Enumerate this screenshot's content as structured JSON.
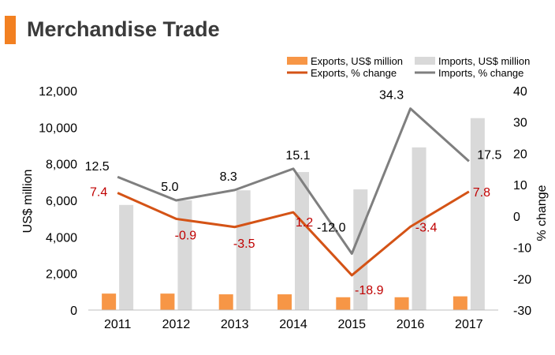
{
  "title": "Merchandise Trade",
  "colors": {
    "accent": "#f28021",
    "exports_bar": "#f79646",
    "imports_bar": "#d9d9d9",
    "exports_line": "#d45316",
    "imports_line": "#7f7f7f",
    "exports_label": "#c00000",
    "axis_text": "#000000"
  },
  "chart_data": {
    "type": "bar+line",
    "categories": [
      "2011",
      "2012",
      "2013",
      "2014",
      "2015",
      "2016",
      "2017"
    ],
    "ylabel": "US$ million",
    "y2label": "% change",
    "ylim": [
      0,
      12000
    ],
    "yticks": [
      "0",
      "2,000",
      "4,000",
      "6,000",
      "8,000",
      "10,000",
      "12,000"
    ],
    "y2lim": [
      -30,
      40
    ],
    "y2ticks": [
      "-30",
      "-20",
      "-10",
      "0",
      "10",
      "20",
      "30",
      "40"
    ],
    "legend_position": "top-right",
    "series": [
      {
        "name": "Exports, US$ million",
        "type": "bar",
        "axis": "left",
        "values": [
          900,
          900,
          860,
          860,
          700,
          700,
          750
        ]
      },
      {
        "name": "Imports, US$ million",
        "type": "bar",
        "axis": "left",
        "values": [
          5750,
          6000,
          6550,
          7550,
          6600,
          8900,
          10500
        ]
      },
      {
        "name": "Exports, % change",
        "type": "line",
        "axis": "right",
        "values": [
          7.4,
          -0.9,
          -3.5,
          1.2,
          -18.9,
          -3.4,
          7.8
        ],
        "labels": [
          "7.4",
          "-0.9",
          "-3.5",
          "1.2",
          "-18.9",
          "-3.4",
          "7.8"
        ]
      },
      {
        "name": "Imports, % change",
        "type": "line",
        "axis": "right",
        "values": [
          12.5,
          5.0,
          8.3,
          15.1,
          -12.0,
          34.3,
          17.5
        ],
        "labels": [
          "12.5",
          "5.0",
          "8.3",
          "15.1",
          "-12.0",
          "34.3",
          "17.5"
        ]
      }
    ]
  }
}
